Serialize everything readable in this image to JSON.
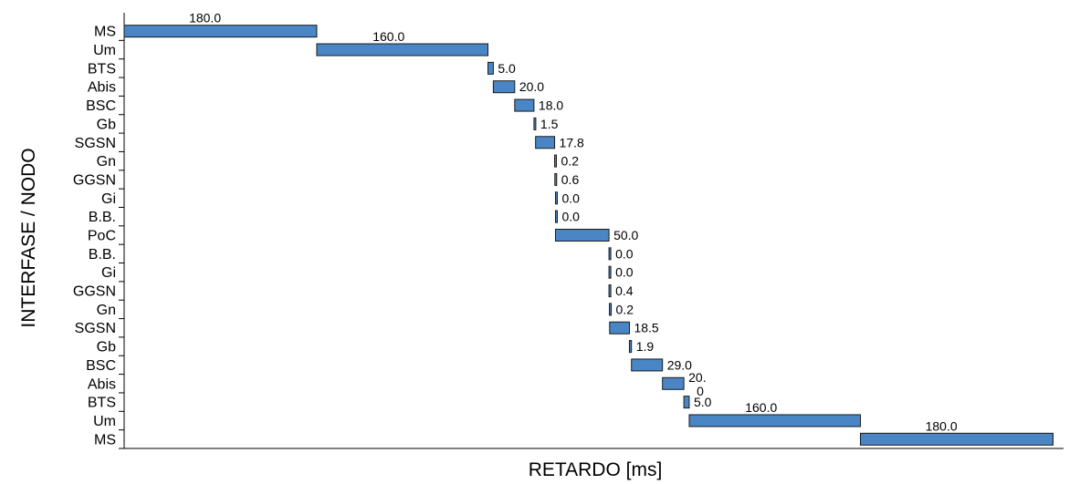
{
  "chart_data": {
    "type": "bar",
    "orientation": "horizontal",
    "subtype": "waterfall",
    "xlabel": "RETARDO [ms]",
    "ylabel": "INTERFASE / NODO",
    "categories": [
      "MS",
      "Um",
      "BTS",
      "Abis",
      "BSC",
      "Gb",
      "SGSN",
      "Gn",
      "GGSN",
      "Gi",
      "B.B.",
      "PoC",
      "B.B.",
      "Gi",
      "GGSN",
      "Gn",
      "SGSN",
      "Gb",
      "BSC",
      "Abis",
      "BTS",
      "Um",
      "MS"
    ],
    "values": [
      180.0,
      160.0,
      5.0,
      20.0,
      18.0,
      1.5,
      17.8,
      0.2,
      0.6,
      0.0,
      0.0,
      50.0,
      0.0,
      0.0,
      0.4,
      0.2,
      18.5,
      1.9,
      29.0,
      20.0,
      5.0,
      160.0,
      180.0
    ],
    "data_labels": [
      "180.0",
      "160.0",
      "5.0",
      "20.0",
      "18.0",
      "1.5",
      "17.8",
      "0.2",
      "0.6",
      "0.0",
      "0.0",
      "50.0",
      "0.0",
      "0.0",
      "0.4",
      "0.2",
      "18.5",
      "1.9",
      "29.0",
      "20.\n0",
      "5.0",
      "160.0",
      "180.0"
    ],
    "xlim": [
      0,
      877.9
    ],
    "grid": false,
    "bar_color": "#4a86c5",
    "legend": "none"
  }
}
